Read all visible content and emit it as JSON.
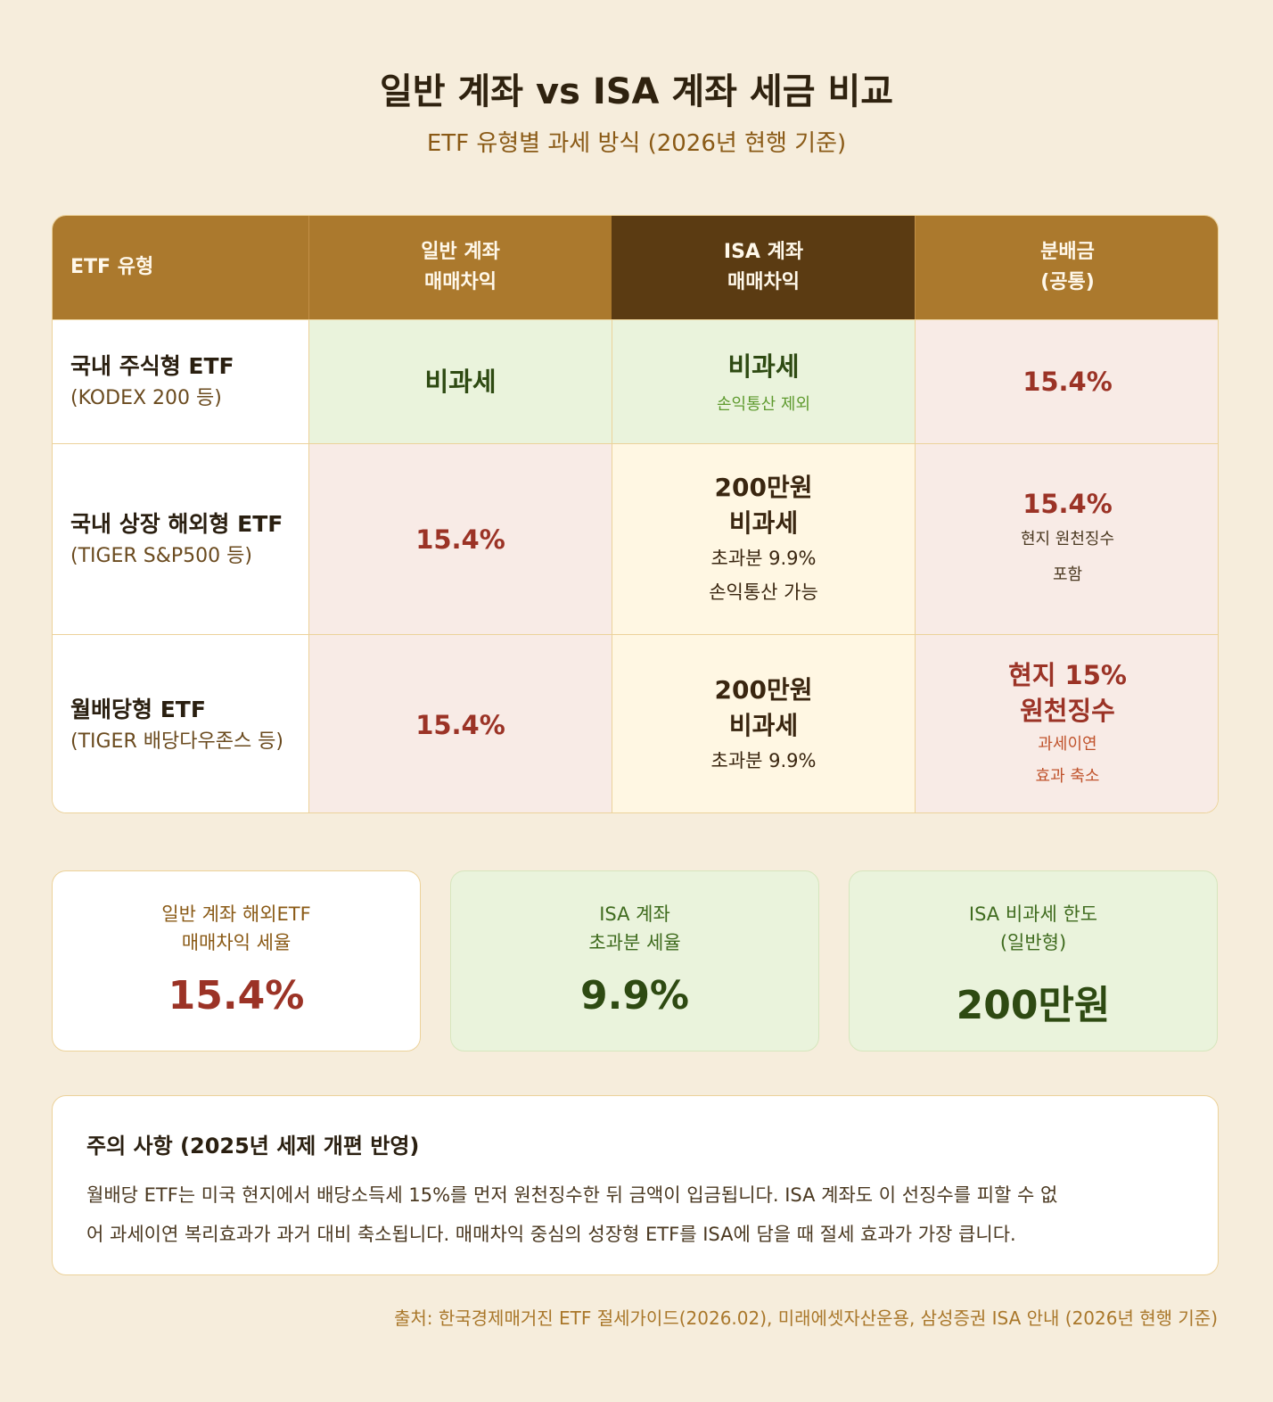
{
  "title": "일반 계좌 vs ISA 계좌 세금 비교",
  "subtitle": "ETF 유형별 과세 방식 (2026년 현행 기준)",
  "table": {
    "headers": {
      "col0": "ETF 유형",
      "col1_line1": "일반 계좌",
      "col1_line2": "매매차익",
      "col2_line1": "ISA 계좌",
      "col2_line2": "매매차익",
      "col3_line1": "분배금",
      "col3_line2": "(공통)"
    },
    "rows": [
      {
        "name": "국내 주식형 ETF",
        "example": "(KODEX 200 등)",
        "general": "비과세",
        "isa_main": "비과세",
        "isa_note": "손익통산 제외",
        "dist_main": "15.4%"
      },
      {
        "name": "국내 상장 해외형 ETF",
        "example": "(TIGER S&P500 등)",
        "general": "15.4%",
        "isa_line1": "200만원",
        "isa_line2": "비과세",
        "isa_note1": "초과분 9.9%",
        "isa_note2": "손익통산 가능",
        "dist_main": "15.4%",
        "dist_note1": "현지 원천징수",
        "dist_note2": "포함"
      },
      {
        "name": "월배당형 ETF",
        "example": "(TIGER 배당다우존스 등)",
        "general": "15.4%",
        "isa_line1": "200만원",
        "isa_line2": "비과세",
        "isa_note1": "초과분 9.9%",
        "dist_line1": "현지 15%",
        "dist_line2": "원천징수",
        "dist_note1": "과세이연",
        "dist_note2": "효과 축소"
      }
    ]
  },
  "stats": [
    {
      "label1": "일반 계좌 해외ETF",
      "label2": "매매차익 세율",
      "value": "15.4%"
    },
    {
      "label1": "ISA 계좌",
      "label2": "초과분 세율",
      "value": "9.9%"
    },
    {
      "label1": "ISA 비과세 한도",
      "label2": "(일반형)",
      "value": "200만원"
    }
  ],
  "notice": {
    "title": "주의 사항 (2025년 세제 개편 반영)",
    "line1": "월배당 ETF는 미국 현지에서 배당소득세 15%를 먼저 원천징수한 뒤 금액이 입금됩니다. ISA 계좌도 이 선징수를 피할 수 없",
    "line2": "어 과세이연 복리효과가 과거 대비 축소됩니다. 매매차익 중심의 성장형 ETF를 ISA에 담을 때 절세 효과가 가장 큽니다."
  },
  "source": "출처: 한국경제매거진 ETF 절세가이드(2026.02), 미래에셋자산운용, 삼성증권 ISA 안내 (2026년 현행 기준)",
  "colors": {
    "background": "#f6eddc",
    "header_gold": "#ab792d",
    "header_dark": "#5b3b12",
    "tax_free_green": "#eaf3dc",
    "taxed_pink": "#f8ebe6",
    "highlight_red": "#9b3326"
  }
}
